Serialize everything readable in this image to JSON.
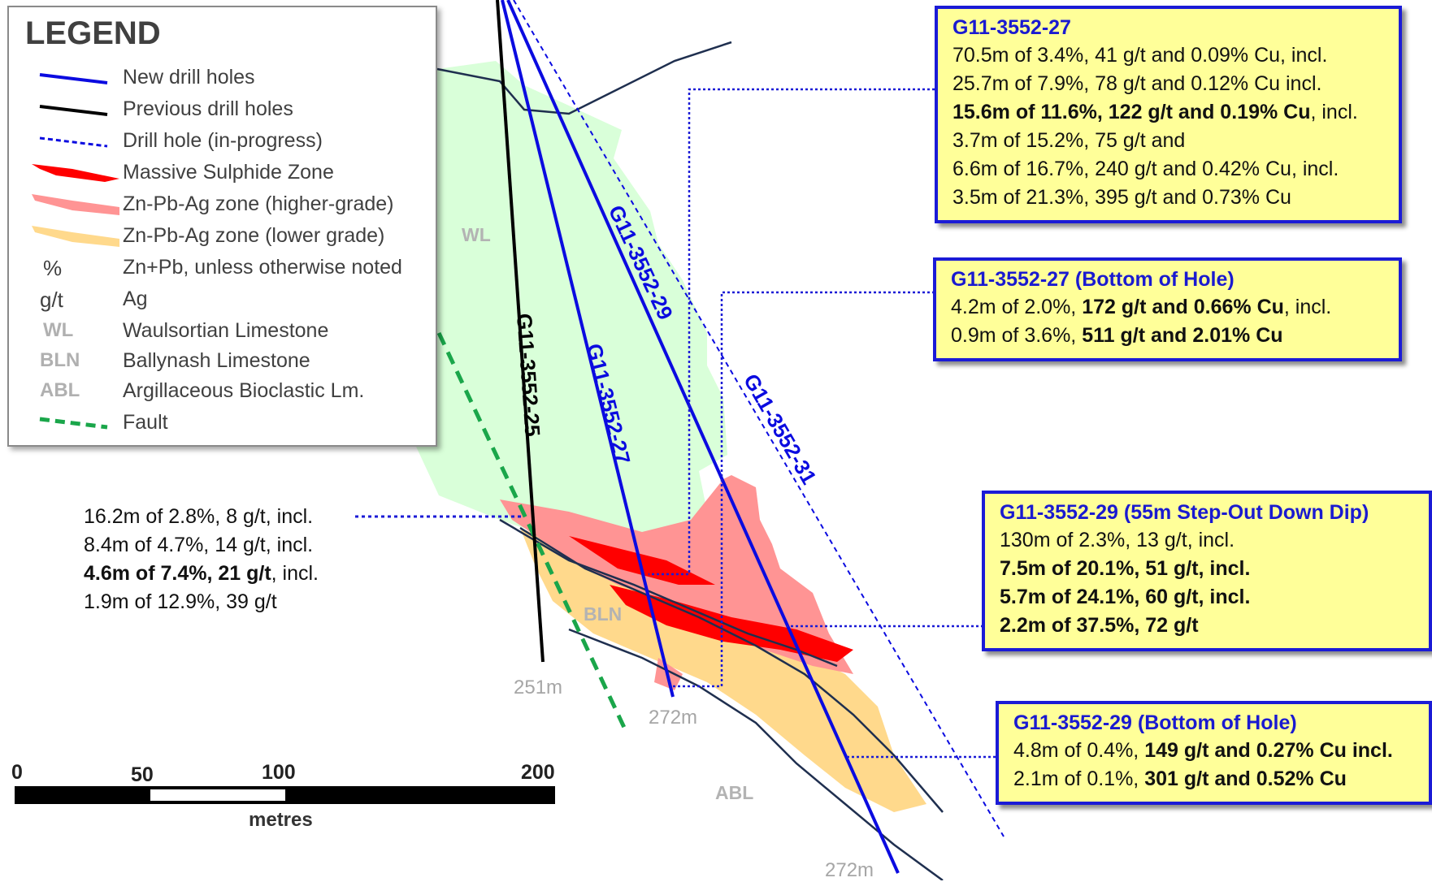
{
  "legend": {
    "title": "LEGEND",
    "items": [
      {
        "symbol": "new-drill-line",
        "label": "New drill holes"
      },
      {
        "symbol": "previous-drill-line",
        "label": "Previous drill holes"
      },
      {
        "symbol": "in-progress-dashed-line",
        "label": "Drill hole (in-progress)"
      },
      {
        "symbol": "massive-sulphide-swatch",
        "label": "Massive Sulphide Zone"
      },
      {
        "symbol": "higher-grade-swatch",
        "label": "Zn-Pb-Ag zone (higher-grade)"
      },
      {
        "symbol": "lower-grade-swatch",
        "label": "Zn-Pb-Ag zone (lower grade)"
      },
      {
        "abbr": "%",
        "label": "Zn+Pb, unless otherwise noted"
      },
      {
        "abbr": "g/t",
        "label": "Ag"
      },
      {
        "abbr": "WL",
        "label": "Waulsortian Limestone"
      },
      {
        "abbr": "BLN",
        "label": "Ballynash Limestone"
      },
      {
        "abbr": "ABL",
        "label": "Argillaceous Bioclastic Lm."
      },
      {
        "symbol": "fault-dashed-line",
        "label": "Fault"
      }
    ]
  },
  "colors": {
    "new_drill": "#0b0be0",
    "previous_drill": "#000000",
    "massive_sulphide": "#ff0000",
    "higher_grade": "#ff9494",
    "lower_grade": "#ffd98c",
    "waulsortian": "#d9ffd9",
    "fault": "#1aa64a",
    "box_fill": "#ffff99",
    "box_border": "#1b1bd6"
  },
  "units": {
    "wl": "WL",
    "bln": "BLN",
    "abl": "ABL"
  },
  "holes": {
    "h25": "G11-3552-25",
    "h27": "G11-3552-27",
    "h29": "G11-3552-29",
    "h31": "G11-3552-31"
  },
  "depths": {
    "h25": "251m",
    "h27": "272m",
    "h29": "272m"
  },
  "callouts": {
    "b27": {
      "title": "G11-3552-27",
      "lines": [
        [
          {
            "t": "70.5m of 3.4%, 41 g/t and 0.09% Cu, incl."
          }
        ],
        [
          {
            "t": "25.7m of 7.9%, 78 g/t and 0.12% Cu incl."
          }
        ],
        [
          {
            "t": "15.6m of 11.6%, 122 g/t and 0.19% Cu",
            "b": true
          },
          {
            "t": ", incl."
          }
        ],
        [
          {
            "t": "3.7m of 15.2%, 75 g/t and"
          }
        ],
        [
          {
            "t": "6.6m of 16.7%, 240 g/t and 0.42% Cu, incl."
          }
        ],
        [
          {
            "t": "3.5m of 21.3%, 395 g/t and 0.73% Cu"
          }
        ]
      ]
    },
    "b27boh": {
      "title": "G11-3552-27 (Bottom of Hole)",
      "lines": [
        [
          {
            "t": "4.2m of 2.0%, "
          },
          {
            "t": "172 g/t and 0.66% Cu",
            "b": true
          },
          {
            "t": ", incl."
          }
        ],
        [
          {
            "t": "0.9m of 3.6%, "
          },
          {
            "t": "511 g/t and 2.01% Cu",
            "b": true
          }
        ]
      ]
    },
    "b29": {
      "title": "G11-3552-29 (55m Step-Out Down Dip)",
      "lines": [
        [
          {
            "t": "130m of 2.3%, 13 g/t, incl."
          }
        ],
        [
          {
            "t": "7.5m of 20.1%, 51 g/t, incl.",
            "b": true
          }
        ],
        [
          {
            "t": "5.7m of 24.1%, 60 g/t, incl.",
            "b": true
          }
        ],
        [
          {
            "t": "2.2m of 37.5%, 72 g/t",
            "b": true
          }
        ]
      ]
    },
    "b29boh": {
      "title": "G11-3552-29 (Bottom of Hole)",
      "lines": [
        [
          {
            "t": "4.8m of 0.4%, "
          },
          {
            "t": "149 g/t and 0.27% Cu incl.",
            "b": true
          }
        ],
        [
          {
            "t": "2.1m of 0.1%, "
          },
          {
            "t": "301 g/t and 0.52% Cu",
            "b": true
          }
        ]
      ]
    },
    "h25": {
      "lines": [
        [
          {
            "t": "16.2m of 2.8%, 8 g/t, incl."
          }
        ],
        [
          {
            "t": "8.4m of 4.7%, 14 g/t, incl."
          }
        ],
        [
          {
            "t": "4.6m of 7.4%, 21 g/t",
            "b": true
          },
          {
            "t": ", incl."
          }
        ],
        [
          {
            "t": "1.9m of 12.9%, 39 g/t"
          }
        ]
      ]
    }
  },
  "scale": {
    "ticks": [
      "0",
      "50",
      "100",
      "200"
    ],
    "unit": "metres"
  }
}
